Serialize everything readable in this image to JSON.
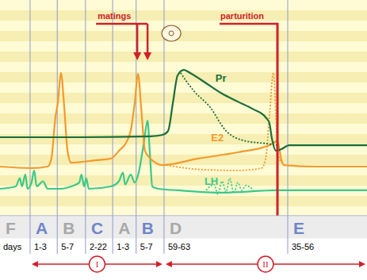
{
  "chart_data": {
    "type": "line",
    "xlim": [
      0,
      100
    ],
    "ylim": [
      0,
      100
    ],
    "tick_labels": false,
    "series": [
      {
        "name": "LH",
        "color": "#3cc88c",
        "line_style": "solid",
        "label": {
          "x": 55.7,
          "y": 14.3
        },
        "x": [
          0,
          4.3,
          5.4,
          6,
          6.9,
          7.5,
          8.6,
          9.3,
          10,
          11.7,
          13,
          16.6,
          19.4,
          21.6,
          22.2,
          22.9,
          23.5,
          24.2,
          30.2,
          32.4,
          33.5,
          34.1,
          35.6,
          36.7,
          37.8,
          38.5,
          39.3,
          40.2,
          40.8,
          41.5,
          43.2,
          48.4,
          60.5,
          75.6,
          100
        ],
        "values": [
          12.5,
          13.6,
          17.3,
          13.6,
          19.1,
          12.5,
          15.4,
          21,
          13.6,
          16,
          12.5,
          12.5,
          13.6,
          15.4,
          19.1,
          13.6,
          17.3,
          12.5,
          13.6,
          16,
          20,
          14.5,
          19.1,
          15.4,
          20,
          26.5,
          35,
          44.1,
          30,
          13.6,
          12.5,
          11.8,
          10.7,
          11.8,
          11.8
        ]
      },
      {
        "color": "#3cc88c",
        "line_style": "dotted",
        "x": [
          56.2,
          58.3,
          59.4,
          60.5,
          61.6,
          62.6,
          63.7,
          64.8,
          65.9,
          67,
          69.1
        ],
        "values": [
          11.8,
          14.5,
          10,
          16,
          11,
          17.3,
          10.5,
          15.4,
          11.8,
          14,
          11.8
        ]
      },
      {
        "name": "E2",
        "color": "#f39a2e",
        "line_style": "solid",
        "label": {
          "x": 57.5,
          "y": 34.6
        },
        "x": [
          0,
          8.6,
          13,
          14,
          15.1,
          15.8,
          16.6,
          17.5,
          18.4,
          19.4,
          25.9,
          30.2,
          32.4,
          34.6,
          35.6,
          36.7,
          37.6,
          38.5,
          39.5,
          41,
          44.3,
          54,
          64.8,
          73.4,
          75.6,
          76.7,
          77.3,
          86.4,
          100
        ],
        "values": [
          22.8,
          22.1,
          22.8,
          26.5,
          45.6,
          52.9,
          66.2,
          50.4,
          30.1,
          24.6,
          25.7,
          26.5,
          30.1,
          34.6,
          39.3,
          52.2,
          65.8,
          49.3,
          30.1,
          26.5,
          23.5,
          26.5,
          29.4,
          32.7,
          34.6,
          25.7,
          23.5,
          22.8,
          22.8
        ]
      },
      {
        "color": "#f39a2e",
        "line_style": "dotted",
        "x": [
          45.4,
          54,
          64.8,
          71.3,
          72.4,
          73.4,
          74.5,
          75.2,
          75.6,
          76.7
        ],
        "values": [
          23.5,
          21.5,
          21,
          22.1,
          26.5,
          45.6,
          66.2,
          45.6,
          30.1,
          24.6
        ]
      },
      {
        "name": "Pr",
        "color": "#1b6e3c",
        "line_style": "solid",
        "label": {
          "x": 58.7,
          "y": 62.1
        },
        "x": [
          0,
          21.6,
          41,
          44.3,
          45.8,
          47.1,
          48.4,
          50.1,
          51.8,
          56.2,
          60.5,
          64.8,
          69.1,
          72.4,
          73.4,
          74.1,
          75.2,
          76.7,
          78.8,
          100
        ],
        "values": [
          36.4,
          36.4,
          36.8,
          37.5,
          39.3,
          52.2,
          65.1,
          67.6,
          66.2,
          61.4,
          56.6,
          52.9,
          49.3,
          45.6,
          43,
          35.7,
          30.1,
          30.9,
          32.7,
          32.7
        ]
      },
      {
        "color": "#1b6e3c",
        "line_style": "dotted",
        "x": [
          49.2,
          52.9,
          57.2,
          61.6,
          67,
          72.4,
          75.6
        ],
        "values": [
          66.2,
          57.7,
          50.4,
          39.3,
          34.6,
          33.5,
          32.7
        ]
      }
    ],
    "annotations": [
      {
        "text": "matings",
        "x": [
          37.4,
          40.2
        ],
        "color": "#d0202a"
      },
      {
        "text": "parturition",
        "x": [
          75.6
        ],
        "color": "#d0202a"
      }
    ],
    "days_label": "days",
    "phases": [
      {
        "label": "F",
        "start": 0,
        "end": 8.2,
        "color": "#a8a8a8"
      },
      {
        "label": "A",
        "days": "1-3",
        "start": 8.2,
        "end": 15.6,
        "color": "#6f86c8"
      },
      {
        "label": "B",
        "days": "5-7",
        "start": 15.6,
        "end": 23.3,
        "color": "#a8a8a8"
      },
      {
        "label": "C",
        "days": "2-22",
        "start": 23.3,
        "end": 30.7,
        "color": "#6f86c8"
      },
      {
        "label": "A",
        "days": "1-3",
        "start": 30.7,
        "end": 37.1,
        "color": "#a8a8a8"
      },
      {
        "label": "B",
        "days": "5-7",
        "start": 37.1,
        "end": 44.7,
        "color": "#6f86c8"
      },
      {
        "label": "D",
        "days": "59-63",
        "start": 44.7,
        "end": 78.4,
        "color": "#a8a8a8"
      },
      {
        "label": "E",
        "days": "35-56",
        "start": 78.4,
        "end": 100,
        "color": "#6f86c8"
      }
    ],
    "cycles": [
      {
        "label": "I",
        "start": 8.2,
        "end": 44.7,
        "color": "#d0202a"
      },
      {
        "label": "II",
        "start": 44.7,
        "end": 100,
        "color": "#d0202a"
      }
    ]
  }
}
